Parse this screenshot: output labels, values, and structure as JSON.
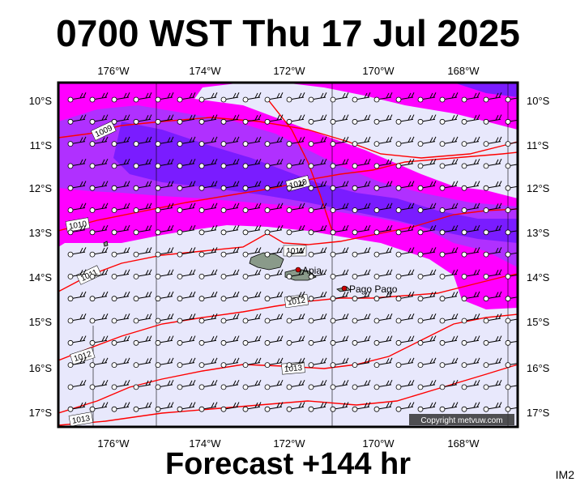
{
  "title": "0700 WST Thu 17 Jul 2025",
  "forecast_label": "Forecast +144 hr",
  "image_code": "IM2",
  "copyright": "Copyright metvuw.com",
  "colors": {
    "background": "#e8e8fc",
    "precip_light": "#ff00ff",
    "precip_medium": "#b030ff",
    "precip_heavy": "#7a1cff",
    "isobar": "#ff0000",
    "land": "#8a9a8a"
  },
  "axes": {
    "longitude_labels": [
      "176°W",
      "174°W",
      "172°W",
      "170°W",
      "168°W"
    ],
    "latitude_labels": [
      "10°S",
      "11°S",
      "12°S",
      "13°S",
      "14°S",
      "15°S",
      "16°S",
      "17°S"
    ]
  },
  "places": [
    {
      "name": "Apia",
      "icon": "city-dot-icon"
    },
    {
      "name": "Pago Pago",
      "icon": "city-dot-icon"
    }
  ],
  "isobar_labels": [
    "1009",
    "1010",
    "1010",
    "1011",
    "1011",
    "1012",
    "1012",
    "1013",
    "1013"
  ],
  "wind_field": {
    "symbol": "wind-barb-icon",
    "station_marker": "circle-icon"
  }
}
